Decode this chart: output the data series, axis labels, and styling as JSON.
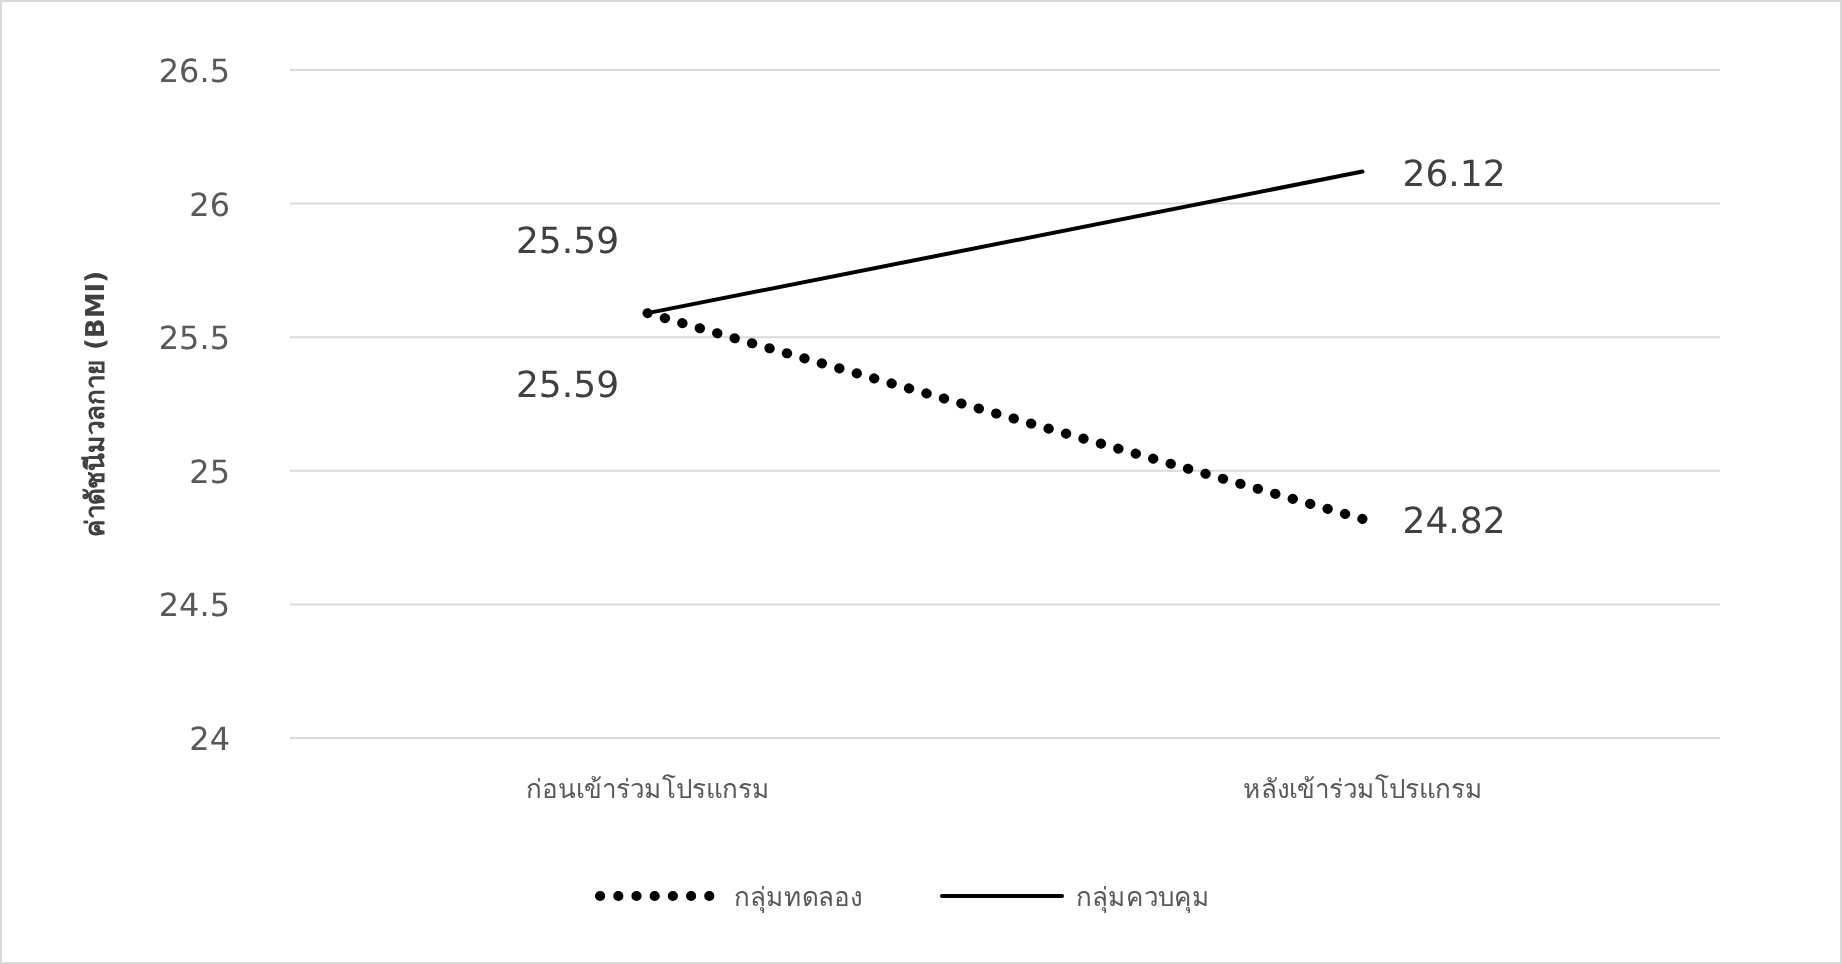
{
  "chart_data": {
    "type": "line",
    "ylabel": "ค่าดัชนีมวลกาย (BMI)",
    "categories": [
      "ก่อนเข้าร่วมโปรแกรม",
      "หลังเข้าร่วมโปรแกรม"
    ],
    "series": [
      {
        "name": "กลุ่มทดลอง",
        "color": "#000000",
        "line_style": "dotted",
        "values": [
          25.59,
          24.82
        ]
      },
      {
        "name": "กลุ่มควบคุม",
        "color": "#000000",
        "line_style": "solid",
        "values": [
          25.59,
          26.12
        ]
      }
    ],
    "ylim": [
      24,
      26.5
    ],
    "yticks": [
      24,
      24.5,
      25,
      25.5,
      26,
      26.5
    ],
    "grid": "y",
    "legend": "bottom",
    "data_labels": true,
    "marker": "none"
  }
}
